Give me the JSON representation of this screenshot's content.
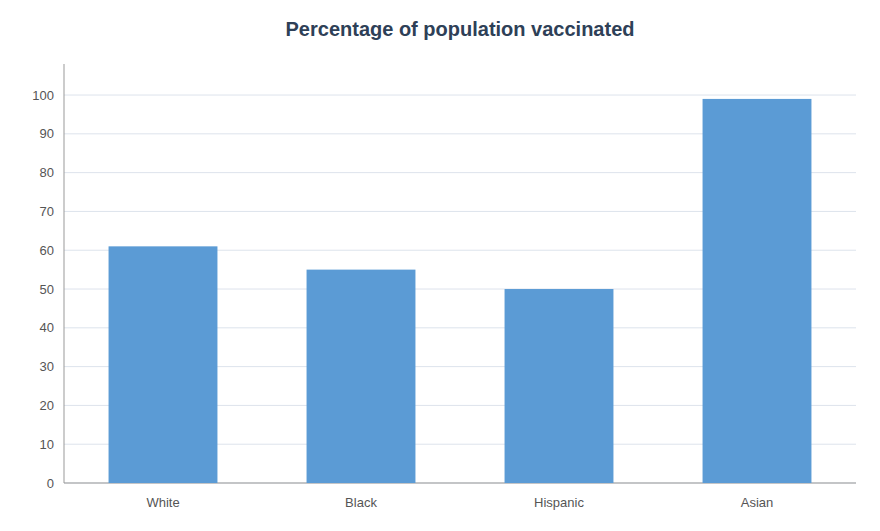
{
  "chart_data": {
    "type": "bar",
    "title": "Percentage of population vaccinated",
    "categories": [
      "White",
      "Black",
      "Hispanic",
      "Asian"
    ],
    "values": [
      61,
      55,
      50,
      99
    ],
    "color": "#5B9BD5",
    "ylim": [
      0,
      108
    ],
    "yticks": [
      0,
      10,
      20,
      30,
      40,
      50,
      60,
      70,
      80,
      90,
      100
    ],
    "grid": true
  }
}
